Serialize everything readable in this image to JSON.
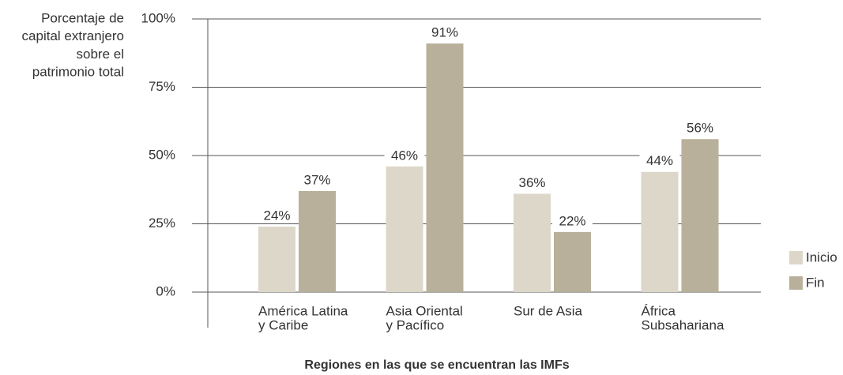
{
  "chart_data": {
    "type": "bar",
    "ylabel_lines": [
      "Porcentaje de",
      "capital extranjero",
      "sobre el",
      "patrimonio total"
    ],
    "xlabel": "Regiones en las que se encuentran las IMFs",
    "categories": [
      [
        "América Latina",
        "y Caribe"
      ],
      [
        "Asia Oriental",
        "y Pacífico"
      ],
      [
        "Sur de Asia"
      ],
      [
        "África",
        "Subsahariana"
      ]
    ],
    "series": [
      {
        "name": "Inicio",
        "color": "#dcd7c8",
        "values": [
          24,
          46,
          36,
          44
        ],
        "value_labels": [
          "24%",
          "46%",
          "36%",
          "44%"
        ]
      },
      {
        "name": "Fin",
        "color": "#b8b09a",
        "values": [
          37,
          91,
          22,
          56
        ],
        "value_labels": [
          "37%",
          "91%",
          "22%",
          "56%"
        ]
      }
    ],
    "ylim": [
      0,
      100
    ],
    "yticks": [
      {
        "value": 0,
        "label": "0%"
      },
      {
        "value": 25,
        "label": "25%"
      },
      {
        "value": 50,
        "label": "50%"
      },
      {
        "value": 75,
        "label": "75%"
      },
      {
        "value": 100,
        "label": "100%"
      }
    ],
    "grid": true,
    "legend": "right"
  }
}
